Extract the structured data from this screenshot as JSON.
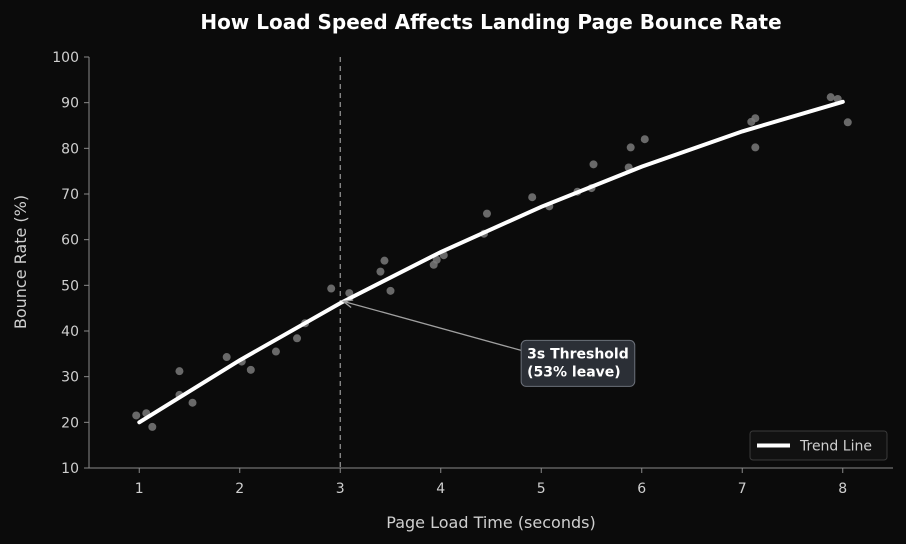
{
  "chart_data": {
    "type": "scatter",
    "title": "How Load Speed Affects Landing Page Bounce Rate",
    "xlabel": "Page Load Time (seconds)",
    "ylabel": "Bounce Rate (%)",
    "xlim": [
      0.5,
      8.5
    ],
    "ylim": [
      10,
      100
    ],
    "xticks": [
      1,
      2,
      3,
      4,
      5,
      6,
      7,
      8
    ],
    "yticks": [
      10,
      20,
      30,
      40,
      50,
      60,
      70,
      80,
      90,
      100
    ],
    "grid": false,
    "points": [
      {
        "x": 0.97,
        "y": 21.5
      },
      {
        "x": 1.07,
        "y": 22.0
      },
      {
        "x": 1.13,
        "y": 19.0
      },
      {
        "x": 1.4,
        "y": 31.2
      },
      {
        "x": 1.4,
        "y": 26.0
      },
      {
        "x": 1.53,
        "y": 24.3
      },
      {
        "x": 1.87,
        "y": 34.3
      },
      {
        "x": 2.02,
        "y": 33.3
      },
      {
        "x": 2.11,
        "y": 31.5
      },
      {
        "x": 2.36,
        "y": 35.5
      },
      {
        "x": 2.57,
        "y": 38.4
      },
      {
        "x": 2.65,
        "y": 41.7
      },
      {
        "x": 2.91,
        "y": 49.3
      },
      {
        "x": 3.09,
        "y": 48.3
      },
      {
        "x": 3.4,
        "y": 53.0
      },
      {
        "x": 3.44,
        "y": 55.4
      },
      {
        "x": 3.5,
        "y": 48.8
      },
      {
        "x": 3.93,
        "y": 54.5
      },
      {
        "x": 3.96,
        "y": 55.6
      },
      {
        "x": 4.03,
        "y": 56.6
      },
      {
        "x": 4.43,
        "y": 61.3
      },
      {
        "x": 4.46,
        "y": 65.7
      },
      {
        "x": 4.91,
        "y": 69.3
      },
      {
        "x": 5.08,
        "y": 67.3
      },
      {
        "x": 5.36,
        "y": 70.5
      },
      {
        "x": 5.5,
        "y": 71.3
      },
      {
        "x": 5.52,
        "y": 76.5
      },
      {
        "x": 5.87,
        "y": 75.8
      },
      {
        "x": 5.89,
        "y": 80.2
      },
      {
        "x": 6.03,
        "y": 82.0
      },
      {
        "x": 7.09,
        "y": 85.8
      },
      {
        "x": 7.13,
        "y": 86.6
      },
      {
        "x": 7.13,
        "y": 80.2
      },
      {
        "x": 7.88,
        "y": 91.2
      },
      {
        "x": 7.95,
        "y": 90.8
      },
      {
        "x": 8.05,
        "y": 85.7
      }
    ],
    "series": [
      {
        "name": "Trend Line",
        "x": [
          1,
          2,
          3,
          4,
          5,
          6,
          7,
          8
        ],
        "values": [
          20.0,
          33.6,
          46.1,
          57.3,
          67.2,
          76.0,
          83.7,
          90.2
        ]
      }
    ],
    "threshold": {
      "x": 3
    },
    "annotation": {
      "lines": [
        "3s Threshold",
        "(53% leave)"
      ],
      "arrow_target": {
        "x": 3.03,
        "y": 46.5
      },
      "text_anchor": {
        "x": 4.8,
        "y": 30.5
      }
    },
    "legend_position": "bottom-right",
    "colors": {
      "background": "#0b0b0b",
      "trend": "#ffffff",
      "points": "#7a7a7a",
      "threshold": "#9a9a9a",
      "annotation_box": "#2b2f36",
      "annotation_border": "#6b7079",
      "axis": "#8a8a8a",
      "text": "#cfcfcf"
    }
  }
}
